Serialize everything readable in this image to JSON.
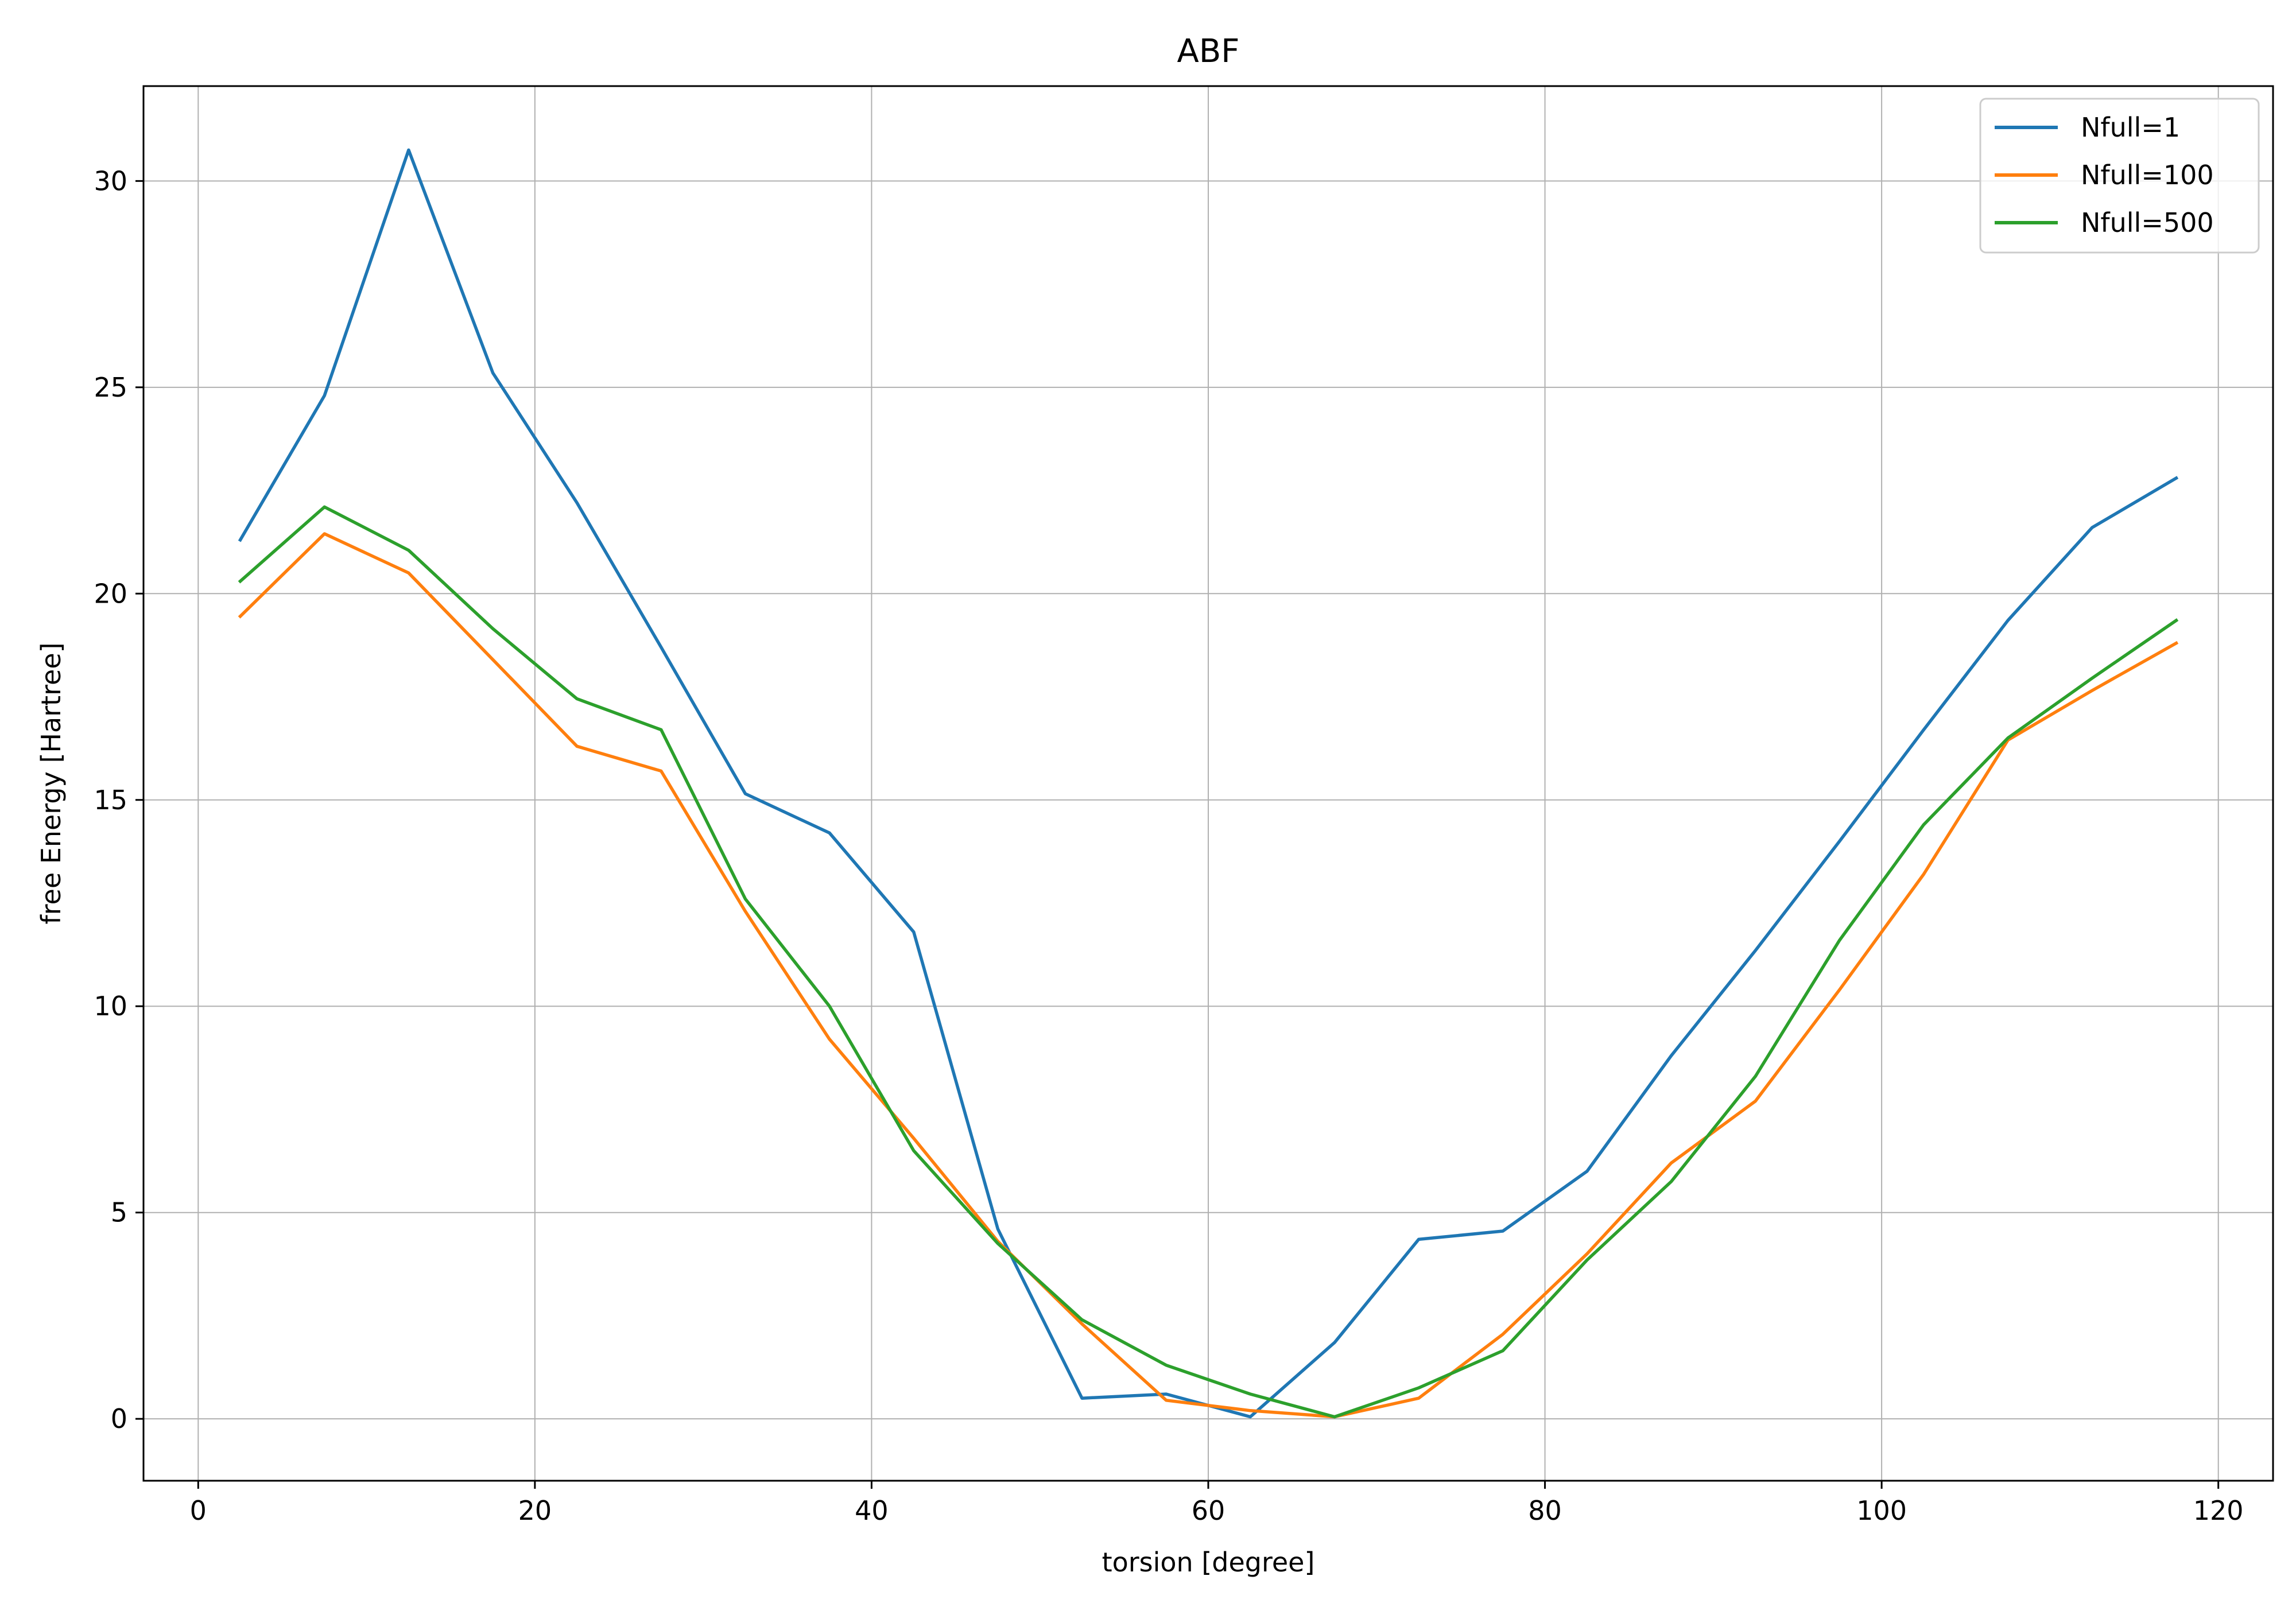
{
  "chart_data": {
    "type": "line",
    "title": "ABF",
    "xlabel": "torsion [degree]",
    "ylabel": "free Energy [Hartree]",
    "xlim": [
      -3.25,
      123.25
    ],
    "ylim": [
      -1.5,
      32.3
    ],
    "xticks": [
      0,
      20,
      40,
      60,
      80,
      100,
      120
    ],
    "yticks": [
      0,
      5,
      10,
      15,
      20,
      25,
      30
    ],
    "grid": true,
    "legend_position": "top-right",
    "x": [
      2.5,
      7.5,
      12.5,
      17.5,
      22.5,
      27.5,
      32.5,
      37.5,
      42.5,
      47.5,
      52.5,
      57.5,
      62.5,
      67.5,
      72.5,
      77.5,
      82.5,
      87.5,
      92.5,
      97.5,
      102.5,
      107.5,
      112.5,
      117.5
    ],
    "series": [
      {
        "name": "Nfull=1",
        "color": "#1f77b4",
        "values": [
          21.3,
          24.8,
          30.75,
          25.35,
          22.2,
          18.7,
          15.15,
          14.2,
          11.8,
          4.6,
          0.5,
          0.6,
          0.05,
          1.85,
          4.35,
          4.55,
          6.0,
          8.8,
          11.35,
          14.0,
          16.7,
          19.35,
          21.6,
          22.8
        ]
      },
      {
        "name": "Nfull=100",
        "color": "#ff7f0e",
        "values": [
          19.45,
          21.45,
          20.5,
          18.4,
          16.3,
          15.7,
          12.3,
          9.2,
          6.8,
          4.3,
          2.3,
          0.45,
          0.2,
          0.05,
          0.5,
          2.05,
          4.0,
          6.2,
          7.7,
          10.4,
          13.2,
          16.45,
          17.65,
          18.8
        ]
      },
      {
        "name": "Nfull=500",
        "color": "#2ca02c",
        "values": [
          20.3,
          22.1,
          21.05,
          19.15,
          17.45,
          16.7,
          12.6,
          10.0,
          6.5,
          4.25,
          2.4,
          1.3,
          0.6,
          0.05,
          0.75,
          1.65,
          3.85,
          5.75,
          8.3,
          11.6,
          14.4,
          16.5,
          17.95,
          19.35
        ]
      }
    ]
  }
}
